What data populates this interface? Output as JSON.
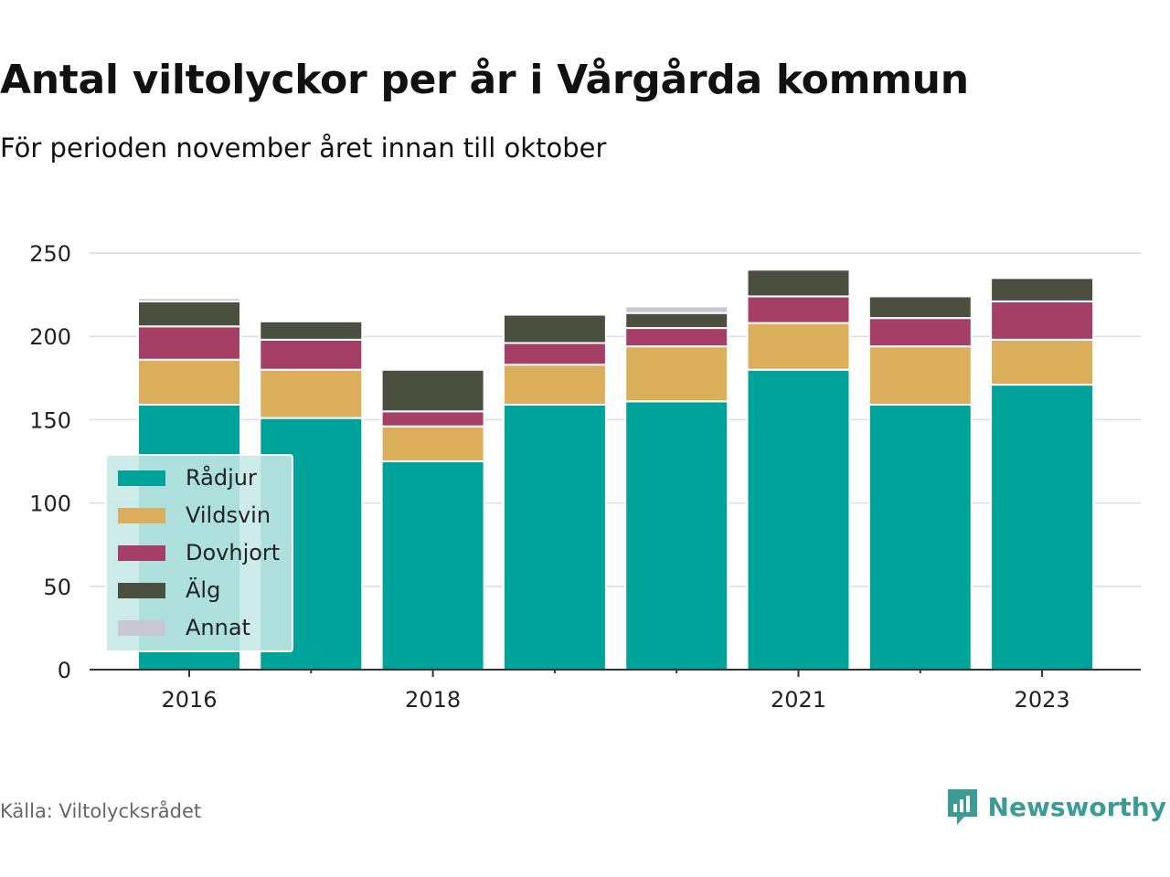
{
  "header": {
    "title": "Antal viltolyckor per år i Vårgårda kommun",
    "subtitle": "För perioden november året innan till oktober"
  },
  "footer": {
    "source": "Källa: Viltolycksrådet",
    "brand": "Newsworthy",
    "brand_icon": "newsworthy-logo-icon"
  },
  "chart_data": {
    "type": "bar",
    "stacked": true,
    "categories": [
      "2016",
      "2017",
      "2018",
      "2019",
      "2020",
      "2021",
      "2022",
      "2023"
    ],
    "x_tick_labels": [
      "2016",
      "2018",
      "2021",
      "2023"
    ],
    "y_ticks": [
      0,
      50,
      100,
      150,
      200,
      250
    ],
    "ylim": [
      0,
      250
    ],
    "grid": true,
    "legend_position": "bottom-left",
    "series": [
      {
        "name": "Rådjur",
        "color": "#00a39a",
        "values": [
          159,
          151,
          125,
          159,
          161,
          180,
          159,
          171
        ]
      },
      {
        "name": "Vildsvin",
        "color": "#dbae5b",
        "values": [
          27,
          29,
          21,
          24,
          33,
          28,
          35,
          27
        ]
      },
      {
        "name": "Dovhjort",
        "color": "#a63f66",
        "values": [
          20,
          18,
          9,
          13,
          11,
          16,
          17,
          23
        ]
      },
      {
        "name": "Älg",
        "color": "#4b4f40",
        "values": [
          15,
          11,
          25,
          17,
          9,
          16,
          13,
          14
        ]
      },
      {
        "name": "Annat",
        "color": "#c8c8d3",
        "values": [
          2,
          0,
          1,
          0,
          4,
          0,
          0,
          0
        ]
      }
    ]
  }
}
